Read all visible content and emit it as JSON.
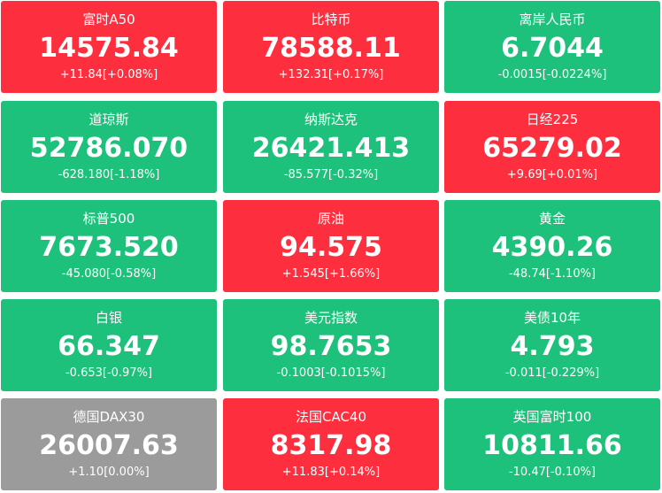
{
  "tiles": [
    {
      "name": "富时A50",
      "price": "14575.84",
      "change": "+11.84[+0.08%]",
      "color": "#fd2f3f"
    },
    {
      "name": "比特币",
      "price": "78588.11",
      "change": "+132.31[+0.17%]",
      "color": "#fd2f3f"
    },
    {
      "name": "离岸人民币",
      "price": "6.7044",
      "change": "-0.0015[-0.0224%]",
      "color": "#1ec17b"
    },
    {
      "name": "道琼斯",
      "price": "52786.070",
      "change": "-628.180[-1.18%]",
      "color": "#1ec17b"
    },
    {
      "name": "纳斯达克",
      "price": "26421.413",
      "change": "-85.577[-0.32%]",
      "color": "#1ec17b"
    },
    {
      "name": "日经225",
      "price": "65279.02",
      "change": "+9.69[+0.01%]",
      "color": "#fd2f3f"
    },
    {
      "name": "标普500",
      "price": "7673.520",
      "change": "-45.080[-0.58%]",
      "color": "#1ec17b"
    },
    {
      "name": "原油",
      "price": "94.575",
      "change": "+1.545[+1.66%]",
      "color": "#fd2f3f"
    },
    {
      "name": "黄金",
      "price": "4390.26",
      "change": "-48.74[-1.10%]",
      "color": "#1ec17b"
    },
    {
      "name": "白银",
      "price": "66.347",
      "change": "-0.653[-0.97%]",
      "color": "#1ec17b"
    },
    {
      "name": "美元指数",
      "price": "98.7653",
      "change": "-0.1003[-0.1015%]",
      "color": "#1ec17b"
    },
    {
      "name": "美债10年",
      "price": "4.793",
      "change": "-0.011[-0.229%]",
      "color": "#1ec17b"
    },
    {
      "name": "德国DAX30",
      "price": "26007.63",
      "change": "+1.10[0.00%]",
      "color": "#9b9b9b"
    },
    {
      "name": "法国CAC40",
      "price": "8317.98",
      "change": "+11.83[+0.14%]",
      "color": "#fd2f3f"
    },
    {
      "name": "英国富时100",
      "price": "10811.66",
      "change": "-10.47[-0.10%]",
      "color": "#1ec17b"
    }
  ]
}
